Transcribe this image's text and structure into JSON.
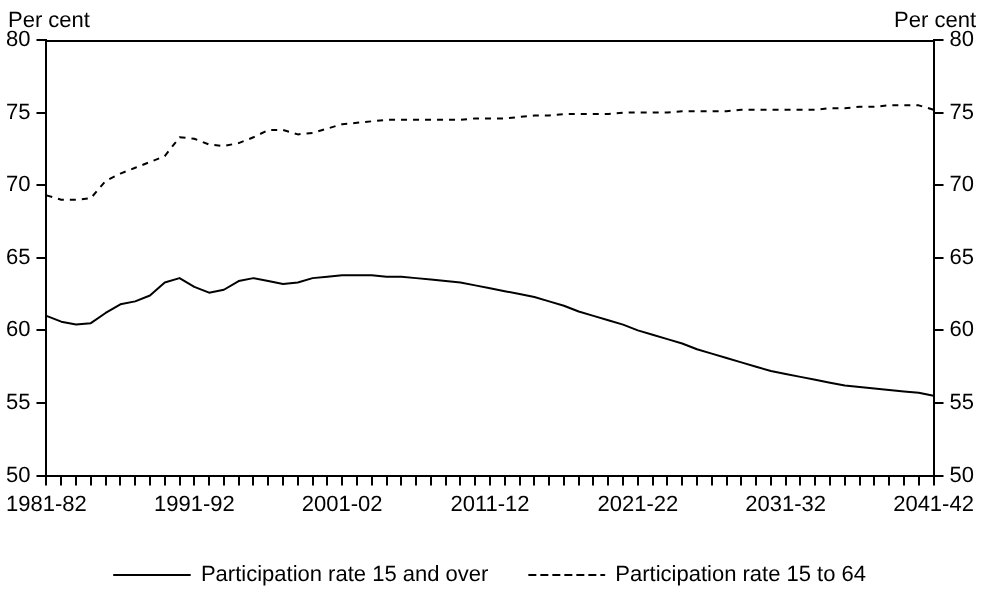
{
  "chart_data": {
    "type": "line",
    "ylabel": "Per cent",
    "y2label": "Per cent",
    "categories": [
      "1981-82",
      null,
      null,
      null,
      null,
      null,
      null,
      null,
      null,
      null,
      "1991-92",
      null,
      null,
      null,
      null,
      null,
      null,
      null,
      null,
      null,
      "2001-02",
      null,
      null,
      null,
      null,
      null,
      null,
      null,
      null,
      null,
      "2011-12",
      null,
      null,
      null,
      null,
      null,
      null,
      null,
      null,
      null,
      "2021-22",
      null,
      null,
      null,
      null,
      null,
      null,
      null,
      null,
      null,
      "2031-32",
      null,
      null,
      null,
      null,
      null,
      null,
      null,
      null,
      null,
      "2041-42"
    ],
    "series": [
      {
        "name": "Participation rate 15 and over",
        "color": "#000000",
        "line_style": "solid",
        "values": [
          61.0,
          60.6,
          60.4,
          60.5,
          61.2,
          61.8,
          62.0,
          62.4,
          63.3,
          63.6,
          63.0,
          62.6,
          62.8,
          63.4,
          63.6,
          63.4,
          63.2,
          63.3,
          63.6,
          63.7,
          63.8,
          63.8,
          63.8,
          63.7,
          63.7,
          63.6,
          63.5,
          63.4,
          63.3,
          63.1,
          62.9,
          62.7,
          62.5,
          62.3,
          62.0,
          61.7,
          61.3,
          61.0,
          60.7,
          60.4,
          60.0,
          59.7,
          59.4,
          59.1,
          58.7,
          58.4,
          58.1,
          57.8,
          57.5,
          57.2,
          57.0,
          56.8,
          56.6,
          56.4,
          56.2,
          56.1,
          56.0,
          55.9,
          55.8,
          55.7,
          55.5
        ]
      },
      {
        "name": "Participation rate 15 to 64",
        "color": "#000000",
        "line_style": "dashed",
        "values": [
          69.3,
          69.0,
          69.0,
          69.1,
          70.3,
          70.8,
          71.2,
          71.6,
          72.0,
          73.3,
          73.2,
          72.8,
          72.7,
          72.9,
          73.3,
          73.8,
          73.8,
          73.5,
          73.6,
          73.9,
          74.2,
          74.3,
          74.4,
          74.5,
          74.5,
          74.5,
          74.5,
          74.5,
          74.5,
          74.6,
          74.6,
          74.6,
          74.7,
          74.8,
          74.8,
          74.9,
          74.9,
          74.9,
          74.9,
          75.0,
          75.0,
          75.0,
          75.0,
          75.1,
          75.1,
          75.1,
          75.1,
          75.2,
          75.2,
          75.2,
          75.2,
          75.2,
          75.2,
          75.3,
          75.3,
          75.4,
          75.4,
          75.5,
          75.5,
          75.5,
          75.2
        ]
      }
    ],
    "ylim": [
      50,
      80
    ],
    "yticks": [
      50,
      55,
      60,
      65,
      70,
      75,
      80
    ],
    "y2lim": [
      50,
      80
    ],
    "y2ticks": [
      50,
      55,
      60,
      65,
      70,
      75,
      80
    ],
    "marker": "none",
    "grid": false,
    "legend": "bottom"
  }
}
